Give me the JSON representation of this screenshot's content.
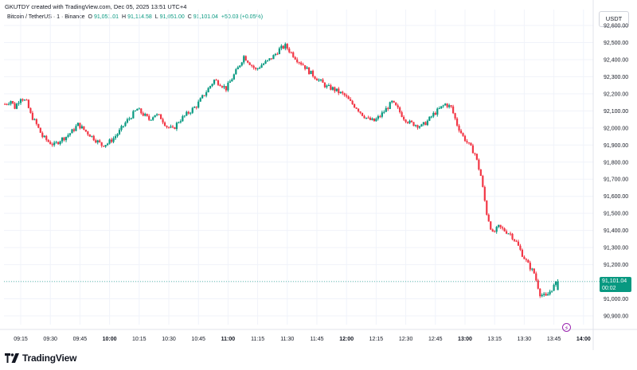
{
  "header": {
    "created_by": "GKUTDY created with TradingView.com, Dec 05, 2025 13:51 UTC+4",
    "symbol": "Bitcoin / TetherUS · 1 · Binance",
    "o_label": "O",
    "o_value": "91,051.01",
    "h_label": "H",
    "h_value": "91,114.58",
    "l_label": "L",
    "l_value": "91,051.00",
    "c_label": "C",
    "c_value": "91,101.04",
    "change": "+50.03 (+0.05%)"
  },
  "currency_button": "USDT",
  "price_tag": {
    "price": "91,101.04",
    "countdown": "00:02"
  },
  "brand": {
    "name": "TradingView"
  },
  "colors": {
    "up": "#089981",
    "down": "#f23645",
    "grid": "#f0f3fa",
    "axis_text": "#131722"
  },
  "icons": {
    "alert": "lightning-bolt-icon",
    "logo": "tradingview-logo-icon"
  },
  "chart_data": {
    "type": "candlestick",
    "title": "",
    "xlabel": "",
    "ylabel": "",
    "ylim": [
      90850,
      92650
    ],
    "y_ticks": [
      "92,600.00",
      "92,500.00",
      "92,400.00",
      "92,300.00",
      "92,200.00",
      "92,100.00",
      "92,000.00",
      "91,900.00",
      "91,800.00",
      "91,700.00",
      "91,600.00",
      "91,500.00",
      "91,400.00",
      "91,300.00",
      "91,200.00",
      "91,100.00",
      "91,000.00",
      "90,900.00"
    ],
    "x_ticks": [
      {
        "label": "09:15",
        "bold": false
      },
      {
        "label": "09:30",
        "bold": false
      },
      {
        "label": "09:45",
        "bold": false
      },
      {
        "label": "10:00",
        "bold": true
      },
      {
        "label": "10:15",
        "bold": false
      },
      {
        "label": "10:30",
        "bold": false
      },
      {
        "label": "10:45",
        "bold": false
      },
      {
        "label": "11:00",
        "bold": true
      },
      {
        "label": "11:15",
        "bold": false
      },
      {
        "label": "11:30",
        "bold": false
      },
      {
        "label": "11:45",
        "bold": false
      },
      {
        "label": "12:00",
        "bold": true
      },
      {
        "label": "12:15",
        "bold": false
      },
      {
        "label": "12:30",
        "bold": false
      },
      {
        "label": "12:45",
        "bold": false
      },
      {
        "label": "13:00",
        "bold": true
      },
      {
        "label": "13:15",
        "bold": false
      },
      {
        "label": "13:30",
        "bold": false
      },
      {
        "label": "13:45",
        "bold": false
      },
      {
        "label": "14:00",
        "bold": true
      }
    ],
    "x_start_minutes": 547,
    "x_end_minutes": 851,
    "close_path": [
      [
        547,
        92140
      ],
      [
        550,
        92160
      ],
      [
        552,
        92120
      ],
      [
        555,
        92180
      ],
      [
        558,
        92150
      ],
      [
        560,
        92080
      ],
      [
        563,
        92020
      ],
      [
        566,
        91950
      ],
      [
        569,
        91920
      ],
      [
        572,
        91900
      ],
      [
        575,
        91930
      ],
      [
        578,
        91950
      ],
      [
        581,
        91980
      ],
      [
        584,
        92020
      ],
      [
        587,
        91990
      ],
      [
        590,
        91960
      ],
      [
        593,
        91930
      ],
      [
        596,
        91900
      ],
      [
        599,
        91910
      ],
      [
        602,
        91940
      ],
      [
        605,
        91980
      ],
      [
        608,
        92030
      ],
      [
        611,
        92070
      ],
      [
        614,
        92110
      ],
      [
        617,
        92080
      ],
      [
        620,
        92050
      ],
      [
        623,
        92080
      ],
      [
        626,
        92060
      ],
      [
        629,
        92010
      ],
      [
        632,
        91990
      ],
      [
        635,
        92040
      ],
      [
        638,
        92070
      ],
      [
        641,
        92100
      ],
      [
        644,
        92130
      ],
      [
        647,
        92180
      ],
      [
        650,
        92230
      ],
      [
        653,
        92280
      ],
      [
        656,
        92260
      ],
      [
        659,
        92230
      ],
      [
        662,
        92290
      ],
      [
        665,
        92350
      ],
      [
        668,
        92420
      ],
      [
        671,
        92380
      ],
      [
        674,
        92340
      ],
      [
        677,
        92370
      ],
      [
        680,
        92390
      ],
      [
        683,
        92420
      ],
      [
        686,
        92460
      ],
      [
        689,
        92480
      ],
      [
        692,
        92440
      ],
      [
        695,
        92400
      ],
      [
        698,
        92370
      ],
      [
        701,
        92330
      ],
      [
        704,
        92300
      ],
      [
        707,
        92270
      ],
      [
        710,
        92240
      ],
      [
        713,
        92230
      ],
      [
        716,
        92210
      ],
      [
        719,
        92190
      ],
      [
        722,
        92150
      ],
      [
        725,
        92120
      ],
      [
        728,
        92080
      ],
      [
        731,
        92050
      ],
      [
        734,
        92040
      ],
      [
        737,
        92070
      ],
      [
        740,
        92110
      ],
      [
        743,
        92150
      ],
      [
        746,
        92110
      ],
      [
        749,
        92060
      ],
      [
        752,
        92030
      ],
      [
        755,
        92020
      ],
      [
        758,
        92010
      ],
      [
        761,
        92040
      ],
      [
        764,
        92080
      ],
      [
        767,
        92110
      ],
      [
        770,
        92140
      ],
      [
        773,
        92120
      ],
      [
        776,
        92020
      ],
      [
        779,
        91950
      ],
      [
        782,
        91900
      ],
      [
        785,
        91850
      ],
      [
        788,
        91720
      ],
      [
        791,
        91500
      ],
      [
        794,
        91380
      ],
      [
        797,
        91420
      ],
      [
        800,
        91400
      ],
      [
        803,
        91380
      ],
      [
        806,
        91330
      ],
      [
        809,
        91260
      ],
      [
        812,
        91200
      ],
      [
        815,
        91150
      ],
      [
        818,
        91030
      ],
      [
        821,
        91010
      ],
      [
        824,
        91060
      ],
      [
        827,
        91101
      ]
    ]
  }
}
